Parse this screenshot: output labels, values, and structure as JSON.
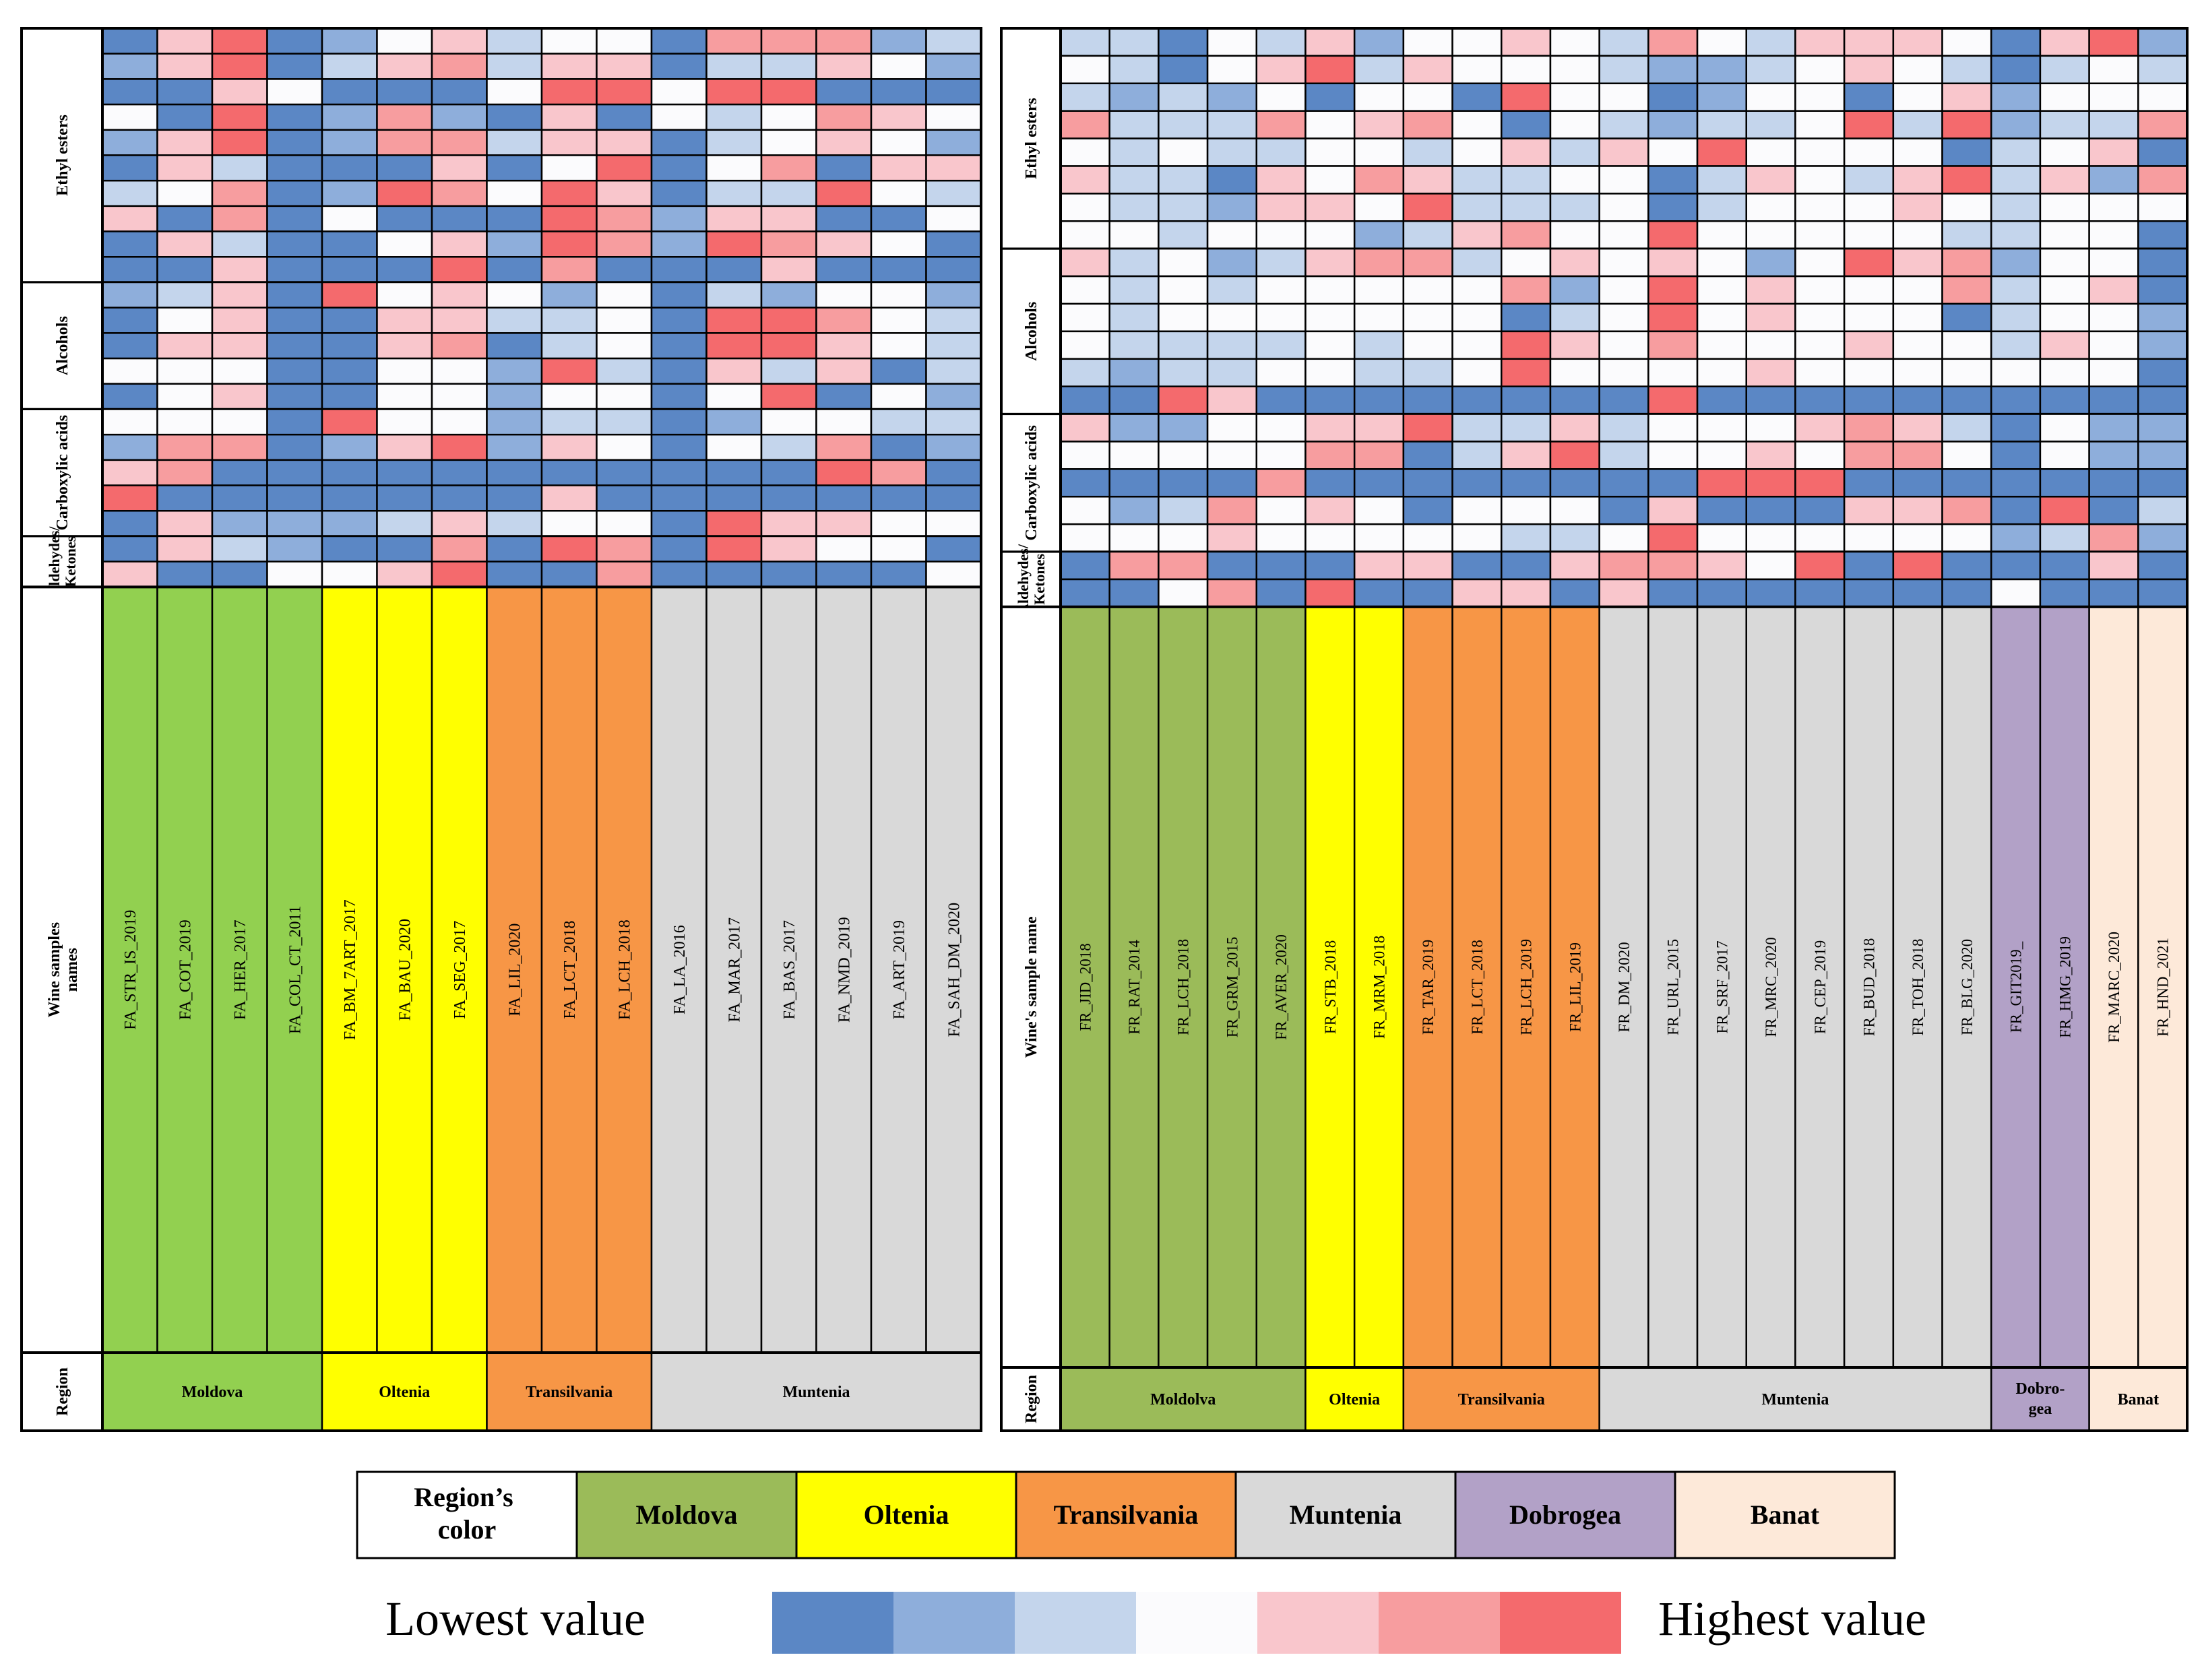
{
  "colors": {
    "scale": [
      "#5b87c5",
      "#8eaedb",
      "#c4d5ec",
      "#fbfbfd",
      "#f9c6cc",
      "#f79d9f",
      "#f46a6d"
    ],
    "regions": {
      "Moldova": "#9bbb59",
      "Moldova_main": "#92d050",
      "Oltenia": "#ffff00",
      "Transilvania": "#f79646",
      "Muntenia": "#d9d9d9",
      "Dobrogea": "#b2a1c7",
      "Banat": "#fde9d9"
    }
  },
  "chart_data": [
    {
      "type": "heatmap",
      "name": "left-heatmap",
      "row_label_header": "Wine samples names",
      "region_header": "Region",
      "groups": [
        {
          "label": "Ethyl esters",
          "rows": 10
        },
        {
          "label": "Alcohols",
          "rows": 5
        },
        {
          "label": "Carboxylic acids",
          "rows": 5
        },
        {
          "label": "Aldehydes/ Ketones",
          "rows": 2
        }
      ],
      "samples": [
        "FA_STR_IS_2019",
        "FA_COT_2019",
        "FA_HER_2017",
        "FA_COL_CT_2011",
        "FA_BM_7ART_2017",
        "FA_BAU_2020",
        "FA_SEG_2017",
        "FA_LIL_2020",
        "FA_LCT_2018",
        "FA_LCH_2018",
        "FA_LA_2016",
        "FA_MAR_2017",
        "FA_BAS_2017",
        "FA_NMD_2019",
        "FA_ART_2019",
        "FA_SAH_DM_2020"
      ],
      "sample_regions": [
        "Moldova",
        "Moldova",
        "Moldova",
        "Moldova",
        "Oltenia",
        "Oltenia",
        "Oltenia",
        "Transilvania",
        "Transilvania",
        "Transilvania",
        "Muntenia",
        "Muntenia",
        "Muntenia",
        "Muntenia",
        "Muntenia",
        "Muntenia"
      ],
      "region_spans": [
        {
          "label": "Moldova",
          "region": "Moldova_main",
          "count": 4
        },
        {
          "label": "Oltenia",
          "region": "Oltenia",
          "count": 3
        },
        {
          "label": "Transilvania",
          "region": "Transilvania",
          "count": 3
        },
        {
          "label": "Muntenia",
          "region": "Muntenia",
          "count": 6
        }
      ],
      "values": [
        [
          0,
          4,
          6,
          0,
          1,
          3,
          4,
          2,
          3,
          3,
          0,
          5,
          5,
          5,
          1,
          2
        ],
        [
          1,
          4,
          6,
          0,
          2,
          4,
          5,
          2,
          4,
          4,
          0,
          2,
          2,
          4,
          3,
          1
        ],
        [
          0,
          0,
          4,
          3,
          0,
          0,
          0,
          3,
          6,
          6,
          3,
          6,
          6,
          0,
          0,
          0
        ],
        [
          3,
          0,
          6,
          0,
          1,
          5,
          1,
          0,
          4,
          0,
          3,
          2,
          3,
          5,
          4,
          3
        ],
        [
          1,
          4,
          6,
          0,
          1,
          5,
          5,
          2,
          4,
          4,
          0,
          2,
          3,
          4,
          3,
          1
        ],
        [
          0,
          4,
          2,
          0,
          0,
          0,
          4,
          0,
          3,
          6,
          0,
          3,
          5,
          0,
          4,
          4
        ],
        [
          2,
          3,
          5,
          0,
          1,
          6,
          5,
          3,
          6,
          4,
          0,
          2,
          2,
          6,
          3,
          2
        ],
        [
          4,
          0,
          5,
          0,
          3,
          0,
          0,
          0,
          6,
          5,
          1,
          4,
          4,
          0,
          0,
          3
        ],
        [
          0,
          4,
          2,
          0,
          0,
          3,
          4,
          1,
          6,
          5,
          1,
          6,
          5,
          4,
          3,
          0
        ],
        [
          0,
          0,
          4,
          0,
          0,
          0,
          6,
          0,
          5,
          0,
          0,
          0,
          4,
          0,
          0,
          0
        ],
        [
          1,
          2,
          4,
          0,
          6,
          3,
          4,
          3,
          1,
          3,
          0,
          2,
          1,
          3,
          3,
          1
        ],
        [
          0,
          3,
          4,
          0,
          0,
          4,
          4,
          2,
          2,
          3,
          0,
          6,
          6,
          5,
          3,
          2
        ],
        [
          0,
          4,
          4,
          0,
          0,
          4,
          5,
          0,
          2,
          3,
          0,
          6,
          6,
          4,
          3,
          2
        ],
        [
          3,
          3,
          3,
          0,
          0,
          3,
          3,
          1,
          6,
          2,
          0,
          4,
          2,
          4,
          0,
          2
        ],
        [
          0,
          3,
          4,
          0,
          0,
          3,
          3,
          1,
          3,
          3,
          0,
          3,
          6,
          0,
          3,
          1
        ],
        [
          3,
          3,
          3,
          0,
          6,
          3,
          3,
          1,
          2,
          2,
          0,
          1,
          3,
          3,
          2,
          2
        ],
        [
          1,
          5,
          5,
          0,
          1,
          4,
          6,
          1,
          4,
          3,
          0,
          3,
          2,
          5,
          0,
          1
        ],
        [
          4,
          5,
          0,
          0,
          0,
          0,
          0,
          0,
          0,
          0,
          0,
          0,
          0,
          6,
          5,
          0
        ],
        [
          6,
          0,
          0,
          0,
          0,
          0,
          0,
          0,
          4,
          0,
          0,
          0,
          0,
          0,
          0,
          0
        ],
        [
          0,
          4,
          1,
          1,
          1,
          2,
          4,
          2,
          3,
          3,
          0,
          6,
          4,
          4,
          3,
          3
        ],
        [
          0,
          4,
          2,
          1,
          0,
          0,
          5,
          0,
          6,
          5,
          0,
          6,
          4,
          3,
          3,
          0
        ],
        [
          4,
          0,
          0,
          3,
          3,
          4,
          6,
          0,
          0,
          5,
          0,
          0,
          0,
          0,
          0,
          3
        ]
      ]
    },
    {
      "type": "heatmap",
      "name": "right-heatmap",
      "row_label_header": "Wine's sample name",
      "region_header": "Region",
      "groups": [
        {
          "label": "Ethyl esters",
          "rows": 8
        },
        {
          "label": "Alcohols",
          "rows": 6
        },
        {
          "label": "Carboxylic acids",
          "rows": 5
        },
        {
          "label": "Aldehydes/ Ketones",
          "rows": 2
        }
      ],
      "samples": [
        "FR_JID_2018",
        "FR_RAT_2014",
        "FR_LCH_2018",
        "FR_GRM_2015",
        "FR_AVER_2020",
        "FR_STB_2018",
        "FR_MRM_2018",
        "FR_TAR_2019",
        "FR_LCT_2018",
        "FR_LCH_2019",
        "FR_LIL_2019",
        "FR_DM_2020",
        "FR_URL_2015",
        "FR_SRF_2017",
        "FR_MRC_2020",
        "FR_CEP_2019",
        "FR_BUD_2018",
        "FR_TOH_2018",
        "FR_BLG_2020",
        "FR_GIT2019_",
        "FR_HMG_2019",
        "FR_MARC_2020",
        "FR_HND_2021"
      ],
      "sample_regions": [
        "Moldova",
        "Moldova",
        "Moldova",
        "Moldova",
        "Moldova",
        "Oltenia",
        "Oltenia",
        "Transilvania",
        "Transilvania",
        "Transilvania",
        "Transilvania",
        "Muntenia",
        "Muntenia",
        "Muntenia",
        "Muntenia",
        "Muntenia",
        "Muntenia",
        "Muntenia",
        "Muntenia",
        "Dobrogea",
        "Dobrogea",
        "Banat",
        "Banat"
      ],
      "region_spans": [
        {
          "label": "Moldolva",
          "region": "Moldova",
          "count": 5
        },
        {
          "label": "Oltenia",
          "region": "Oltenia",
          "count": 2
        },
        {
          "label": "Transilvania",
          "region": "Transilvania",
          "count": 4
        },
        {
          "label": "Muntenia",
          "region": "Muntenia",
          "count": 8
        },
        {
          "label": "Dobro-gea",
          "region": "Dobrogea",
          "count": 2
        },
        {
          "label": "Banat",
          "region": "Banat",
          "count": 2
        }
      ],
      "values": [
        [
          2,
          2,
          0,
          3,
          2,
          4,
          1,
          3,
          3,
          4,
          3,
          2,
          5,
          3,
          2,
          4,
          4,
          4,
          3,
          0,
          4,
          6,
          1
        ],
        [
          3,
          2,
          0,
          3,
          4,
          6,
          2,
          4,
          3,
          3,
          3,
          2,
          1,
          1,
          2,
          3,
          4,
          3,
          2,
          0,
          2,
          3,
          2
        ],
        [
          2,
          1,
          2,
          1,
          3,
          0,
          3,
          3,
          0,
          6,
          3,
          3,
          0,
          1,
          3,
          3,
          0,
          3,
          4,
          1,
          3,
          3,
          3
        ],
        [
          5,
          2,
          2,
          2,
          5,
          3,
          4,
          5,
          3,
          0,
          3,
          2,
          1,
          2,
          2,
          3,
          6,
          2,
          6,
          1,
          2,
          2,
          5
        ],
        [
          3,
          2,
          3,
          2,
          2,
          3,
          3,
          2,
          3,
          4,
          2,
          4,
          3,
          6,
          3,
          3,
          3,
          3,
          0,
          2,
          3,
          4,
          0
        ],
        [
          4,
          2,
          2,
          0,
          4,
          3,
          5,
          4,
          2,
          2,
          3,
          3,
          0,
          2,
          4,
          3,
          2,
          4,
          6,
          2,
          4,
          1,
          5
        ],
        [
          3,
          2,
          2,
          1,
          4,
          4,
          3,
          6,
          2,
          2,
          2,
          3,
          0,
          2,
          3,
          3,
          3,
          4,
          3,
          2,
          3,
          3,
          3
        ],
        [
          3,
          3,
          2,
          3,
          3,
          3,
          1,
          2,
          4,
          5,
          3,
          3,
          6,
          3,
          3,
          3,
          3,
          3,
          2,
          2,
          3,
          3,
          0
        ],
        [
          4,
          2,
          3,
          1,
          2,
          4,
          5,
          5,
          2,
          3,
          4,
          3,
          4,
          3,
          1,
          3,
          6,
          4,
          5,
          1,
          3,
          3,
          0
        ],
        [
          3,
          2,
          3,
          2,
          3,
          3,
          3,
          3,
          3,
          5,
          1,
          3,
          6,
          3,
          4,
          3,
          3,
          3,
          5,
          2,
          3,
          4,
          0
        ],
        [
          3,
          2,
          3,
          3,
          3,
          3,
          3,
          3,
          3,
          0,
          2,
          3,
          6,
          3,
          4,
          3,
          3,
          3,
          0,
          2,
          3,
          3,
          1
        ],
        [
          3,
          2,
          2,
          2,
          2,
          3,
          2,
          3,
          3,
          6,
          4,
          3,
          5,
          3,
          3,
          3,
          4,
          3,
          3,
          2,
          4,
          3,
          1
        ],
        [
          2,
          1,
          2,
          2,
          3,
          3,
          2,
          2,
          3,
          6,
          3,
          3,
          3,
          3,
          4,
          3,
          3,
          3,
          3,
          3,
          3,
          3,
          0
        ],
        [
          0,
          0,
          6,
          4,
          0,
          0,
          0,
          0,
          0,
          0,
          0,
          0,
          6,
          0,
          0,
          0,
          0,
          0,
          0,
          0,
          0,
          0,
          0
        ],
        [
          4,
          1,
          1,
          3,
          3,
          4,
          4,
          6,
          2,
          2,
          4,
          2,
          3,
          3,
          3,
          4,
          5,
          4,
          2,
          0,
          3,
          1,
          1
        ],
        [
          3,
          3,
          3,
          3,
          3,
          5,
          5,
          0,
          2,
          4,
          6,
          2,
          3,
          3,
          4,
          3,
          5,
          5,
          3,
          0,
          3,
          1,
          1
        ],
        [
          0,
          0,
          0,
          0,
          5,
          0,
          0,
          0,
          0,
          0,
          0,
          0,
          0,
          6,
          6,
          6,
          0,
          0,
          0,
          0,
          0,
          0,
          0
        ],
        [
          3,
          1,
          2,
          5,
          3,
          4,
          3,
          0,
          3,
          3,
          3,
          0,
          4,
          0,
          0,
          0,
          4,
          4,
          5,
          0,
          6,
          0,
          2
        ],
        [
          3,
          3,
          3,
          4,
          3,
          3,
          3,
          3,
          3,
          2,
          2,
          3,
          6,
          3,
          3,
          3,
          3,
          3,
          3,
          1,
          2,
          5,
          1
        ],
        [
          0,
          5,
          5,
          0,
          0,
          0,
          4,
          4,
          0,
          0,
          4,
          5,
          5,
          4,
          3,
          6,
          0,
          6,
          0,
          0,
          0,
          4,
          0
        ],
        [
          0,
          0,
          3,
          5,
          0,
          6,
          0,
          0,
          4,
          4,
          0,
          4,
          0,
          0,
          0,
          0,
          0,
          0,
          0,
          3,
          0,
          0,
          0
        ]
      ]
    }
  ],
  "legend": {
    "title": "Region’s color",
    "items": [
      {
        "label": "Moldova",
        "region": "Moldova"
      },
      {
        "label": "Oltenia",
        "region": "Oltenia"
      },
      {
        "label": "Transilvania",
        "region": "Transilvania"
      },
      {
        "label": "Muntenia",
        "region": "Muntenia"
      },
      {
        "label": "Dobrogea",
        "region": "Dobrogea"
      },
      {
        "label": "Banat",
        "region": "Banat"
      }
    ],
    "low_label": "Lowest value",
    "high_label": "Highest value"
  }
}
